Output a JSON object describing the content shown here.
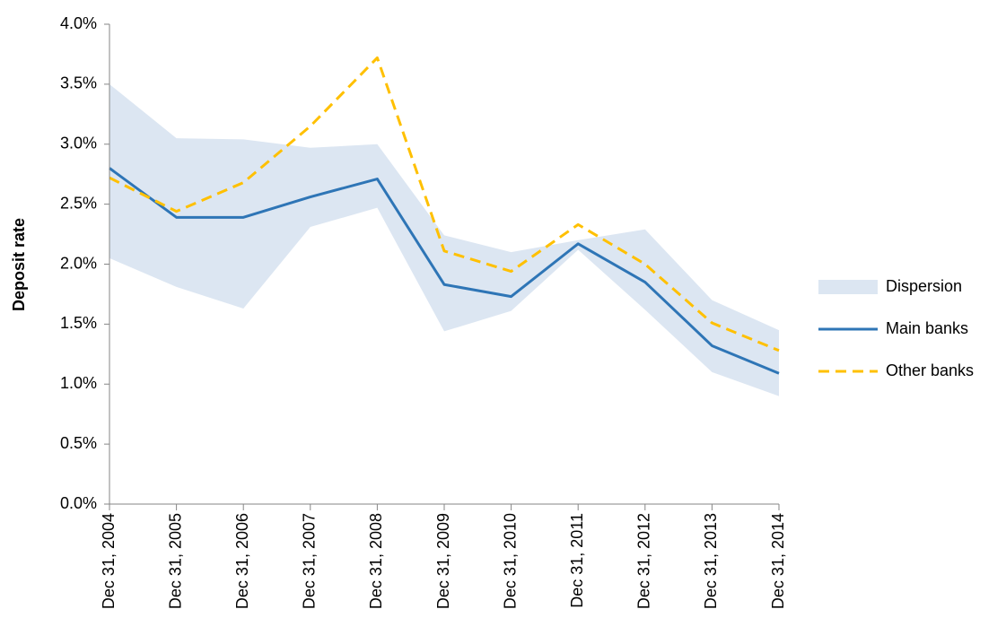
{
  "chart_data": {
    "type": "line",
    "y_label": "Deposit rate",
    "categories": [
      "Dec 31, 2004",
      "Dec 31, 2005",
      "Dec 31, 2006",
      "Dec 31, 2007",
      "Dec 31, 2008",
      "Dec 31, 2009",
      "Dec 31, 2010",
      "Dec 31, 2011",
      "Dec 31, 2012",
      "Dec 31, 2013",
      "Dec 31, 2014"
    ],
    "series": [
      {
        "name": "Dispersion",
        "type": "band",
        "color": "#dce6f2",
        "upper": [
          3.5,
          3.05,
          3.04,
          2.97,
          3.0,
          2.24,
          2.1,
          2.2,
          2.29,
          1.7,
          1.45
        ],
        "lower": [
          2.05,
          1.81,
          1.63,
          2.31,
          2.47,
          1.44,
          1.61,
          2.12,
          1.62,
          1.1,
          0.9
        ]
      },
      {
        "name": "Main banks",
        "type": "line",
        "color": "#2e75b6",
        "dash": false,
        "values": [
          2.8,
          2.39,
          2.39,
          2.56,
          2.71,
          1.83,
          1.73,
          2.17,
          1.85,
          1.32,
          1.09
        ]
      },
      {
        "name": "Other banks",
        "type": "line",
        "color": "#ffc000",
        "dash": true,
        "values": [
          2.72,
          2.44,
          2.68,
          3.15,
          3.72,
          2.11,
          1.94,
          2.33,
          2.0,
          1.51,
          1.28
        ]
      }
    ],
    "ylim": [
      0,
      4
    ],
    "yticks": [
      {
        "value": 0,
        "label": "0.0%"
      },
      {
        "value": 0.5,
        "label": "0.5%"
      },
      {
        "value": 1,
        "label": "1.0%"
      },
      {
        "value": 1.5,
        "label": "1.5%"
      },
      {
        "value": 2,
        "label": "2.0%"
      },
      {
        "value": 2.5,
        "label": "2.5%"
      },
      {
        "value": 3,
        "label": "3.0%"
      },
      {
        "value": 3.5,
        "label": "3.5%"
      },
      {
        "value": 4,
        "label": "4.0%"
      }
    ],
    "grid": false,
    "legend": "right"
  }
}
